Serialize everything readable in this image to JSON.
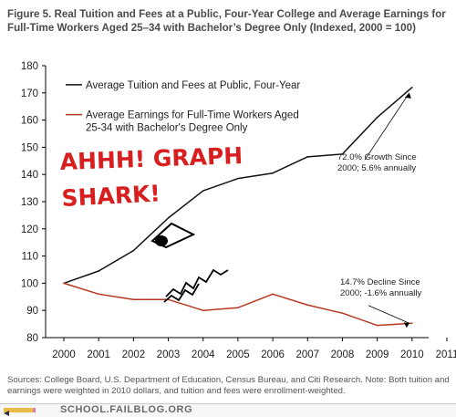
{
  "figure_title": "Figure 5. Real Tuition and Fees at a Public, Four-Year College and Average Earnings for Full-Time Workers Aged 25–34 with Bachelor’s Degree Only (Indexed, 2000 = 100)",
  "sources": "Sources: College Board, U.S. Department of Education, Census Bureau, and Citi Research. Note: Both tuition and earnings were weighted in 2010 dollars, and tuition and fees were enrollment-weighted.",
  "footer": {
    "site": "SCHOOL.FAILBLOG.ORG"
  },
  "doodle": {
    "line1": "AHHH!  GRAPH",
    "line2": "SHARK!"
  },
  "colors": {
    "tuition": "#111111",
    "earnings": "#b8381f",
    "doodle": "#d81f1f",
    "axis": "#000000"
  },
  "chart_data": {
    "type": "line",
    "x": [
      2000,
      2001,
      2002,
      2003,
      2004,
      2005,
      2006,
      2007,
      2008,
      2009,
      2010
    ],
    "xticks": [
      "2000",
      "2001",
      "2002",
      "2003",
      "2004",
      "2005",
      "2006",
      "2007",
      "2008",
      "2009",
      "2010",
      "2011"
    ],
    "yticks": [
      "80",
      "90",
      "100",
      "110",
      "120",
      "130",
      "140",
      "150",
      "160",
      "170",
      "180"
    ],
    "xlim": [
      2000,
      2011
    ],
    "ylim": [
      80,
      180
    ],
    "grid": false,
    "legend_position": "top-left",
    "series": [
      {
        "name": "Average Tuition and Fees at Public, Four-Year",
        "color": "#111111",
        "values": [
          100,
          104.5,
          112,
          124,
          134,
          138.5,
          140.5,
          146.5,
          147.5,
          161,
          172
        ]
      },
      {
        "name": "Average Earnings for Full-Time Workers Aged 25-34 with Bachelor's Degree Only",
        "color": "#b8381f",
        "values": [
          100,
          96,
          94,
          94,
          90,
          91,
          96,
          92,
          89,
          84.5,
          85.3
        ]
      }
    ],
    "legend_lines": [
      [
        "Average Tuition and Fees at Public, Four-Year"
      ],
      [
        "Average Earnings for Full-Time Workers Aged",
        "25-34 with Bachelor's Degree Only"
      ]
    ],
    "annotations": [
      {
        "series": 0,
        "lines": [
          "72.0% Growth Since",
          "2000; 5.6% annually"
        ]
      },
      {
        "series": 1,
        "lines": [
          "14.7% Decline Since",
          "2000; -1.6% annually"
        ]
      }
    ]
  }
}
